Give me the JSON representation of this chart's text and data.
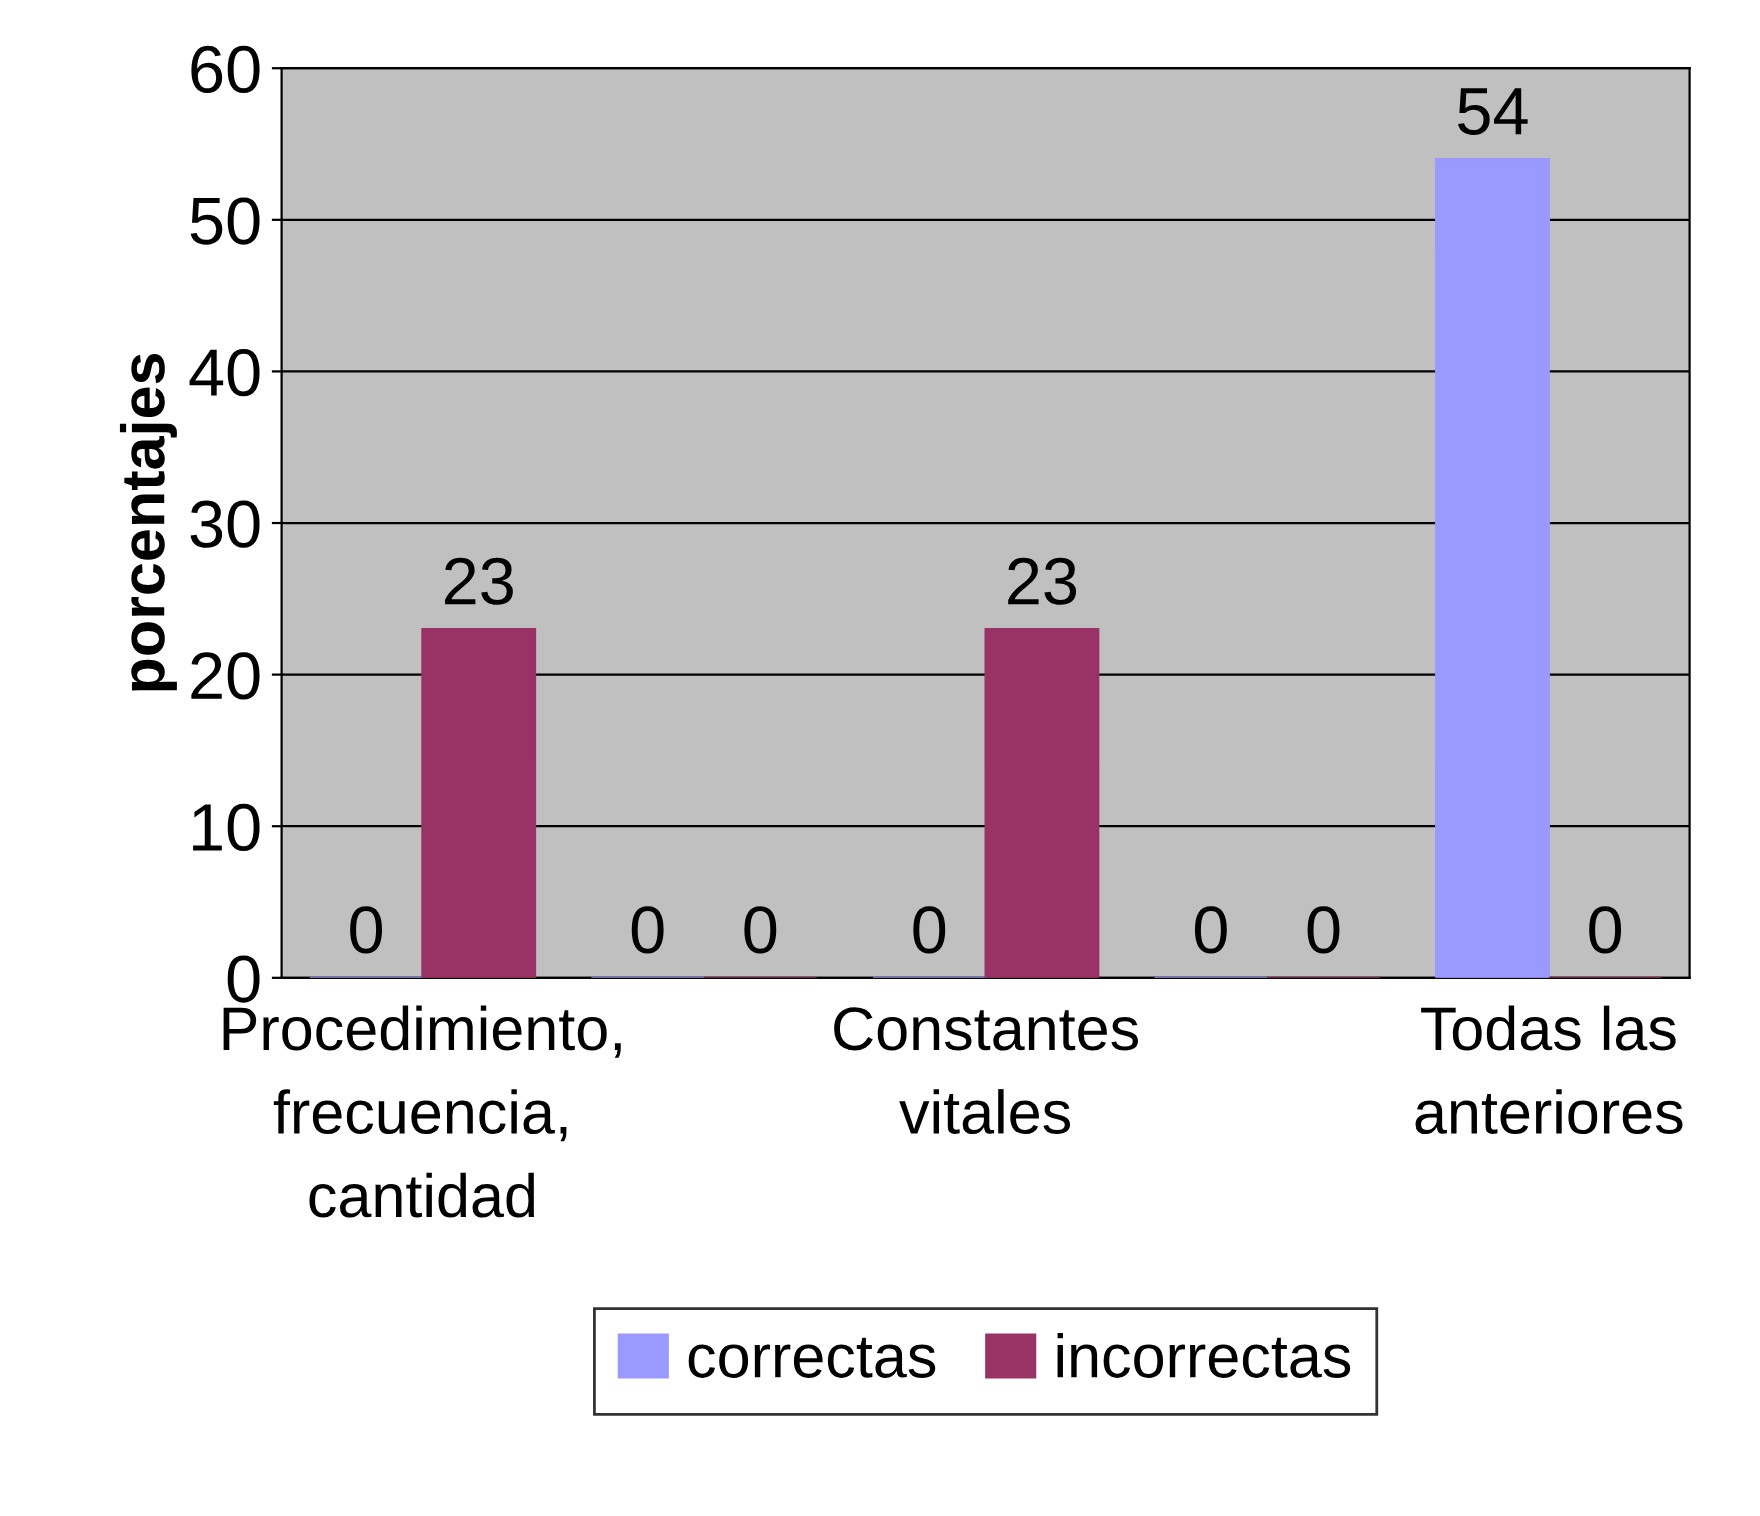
{
  "chart_data": {
    "type": "bar",
    "ylabel": "porcentajes",
    "categories": [
      "Procedimiento,\nfrecuencia,\ncantidad",
      null,
      "Constantes\nvitales",
      null,
      "Todas las\nanteriores"
    ],
    "series": [
      {
        "name": "correctas",
        "color": "#9999ff",
        "values": [
          0,
          0,
          0,
          0,
          54
        ]
      },
      {
        "name": "incorrectas",
        "color": "#993366",
        "values": [
          23,
          0,
          23,
          0,
          0
        ]
      }
    ],
    "ylim": [
      0,
      60
    ],
    "yticks": [
      0,
      10,
      20,
      30,
      40,
      50,
      60
    ],
    "grid": "y",
    "legend": "bottom",
    "data_labels": true
  }
}
